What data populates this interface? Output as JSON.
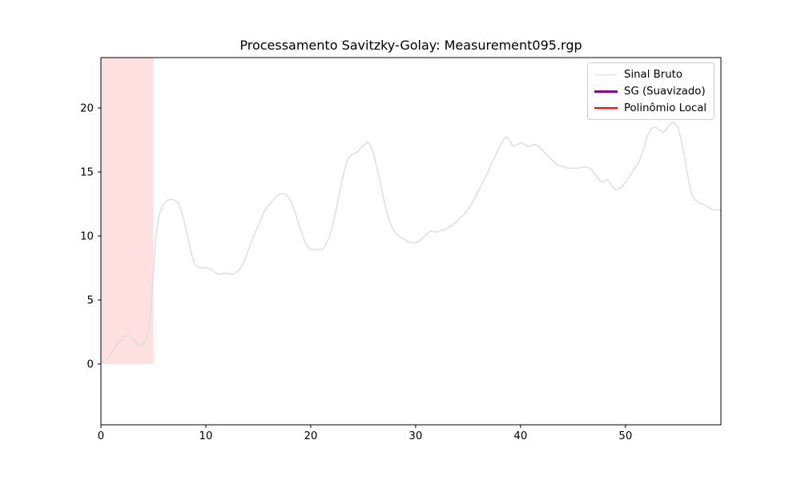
{
  "title": "Processamento Savitzky-Golay: Measurement095.rgp",
  "legend": {
    "position": "upper-right",
    "entries": [
      {
        "label": "Sinal Bruto",
        "color": "#dcdcdc",
        "linewidth": 1.5
      },
      {
        "label": "SG (Suavizado)",
        "color": "#800080",
        "linewidth": 3
      },
      {
        "label": "Polinômio Local",
        "color": "#ff0000",
        "linewidth": 2
      }
    ]
  },
  "chart_data": {
    "type": "line",
    "title": "Processamento Savitzky-Golay: Measurement095.rgp",
    "xlabel": "",
    "ylabel": "",
    "xlim": [
      0,
      59.1
    ],
    "ylim": [
      -4.75,
      23.94
    ],
    "xticks": [
      0,
      10,
      20,
      30,
      40,
      50
    ],
    "yticks": [
      0,
      5,
      10,
      15,
      20
    ],
    "grid": false,
    "background": "#ffffff",
    "spine_color": "#000000",
    "highlight_span": {
      "x0": 0,
      "x1": 5,
      "y0": 0,
      "y1": 23.94,
      "color": "rgba(255,0,0,0.12)"
    },
    "series": [
      {
        "name": "Sinal Bruto",
        "color": "#dcdcdc",
        "linewidth": 1.4,
        "x": [
          0.0,
          0.4,
          0.8,
          1.2,
          1.6,
          2.0,
          2.4,
          2.8,
          3.2,
          3.6,
          4.0,
          4.3,
          4.6,
          4.8,
          5.0,
          5.2,
          5.4,
          5.6,
          5.9,
          6.2,
          6.5,
          6.8,
          7.1,
          7.4,
          7.7,
          8.0,
          8.3,
          8.6,
          8.9,
          9.2,
          9.5,
          9.8,
          10.1,
          10.4,
          10.7,
          11.0,
          11.3,
          11.6,
          11.9,
          12.2,
          12.5,
          12.8,
          13.1,
          13.4,
          13.7,
          14.0,
          14.3,
          14.6,
          14.9,
          15.2,
          15.5,
          15.8,
          16.1,
          16.4,
          16.7,
          17.0,
          17.3,
          17.6,
          17.9,
          18.2,
          18.5,
          18.8,
          19.1,
          19.4,
          19.7,
          20.0,
          20.3,
          20.6,
          20.9,
          21.2,
          21.5,
          21.8,
          22.1,
          22.4,
          22.7,
          23.0,
          23.3,
          23.6,
          23.9,
          24.2,
          24.5,
          24.8,
          25.1,
          25.4,
          25.7,
          26.0,
          26.3,
          26.6,
          26.9,
          27.2,
          27.5,
          27.8,
          28.1,
          28.4,
          28.7,
          29.0,
          29.3,
          29.6,
          29.9,
          30.2,
          30.5,
          30.8,
          31.1,
          31.4,
          31.7,
          32.0,
          32.3,
          32.6,
          32.9,
          33.2,
          33.5,
          33.8,
          34.1,
          34.4,
          34.7,
          35.0,
          35.3,
          35.6,
          35.9,
          36.2,
          36.5,
          36.8,
          37.1,
          37.4,
          37.7,
          38.0,
          38.3,
          38.6,
          38.9,
          39.2,
          39.5,
          39.8,
          40.1,
          40.4,
          40.7,
          41.0,
          41.3,
          41.6,
          41.9,
          42.2,
          42.5,
          42.8,
          43.1,
          43.4,
          43.7,
          44.0,
          44.3,
          44.6,
          44.9,
          45.2,
          45.5,
          45.8,
          46.1,
          46.4,
          46.7,
          47.0,
          47.3,
          47.6,
          47.9,
          48.2,
          48.5,
          48.8,
          49.1,
          49.4,
          49.7,
          50.0,
          50.3,
          50.6,
          50.9,
          51.2,
          51.5,
          51.8,
          52.1,
          52.4,
          52.7,
          53.0,
          53.3,
          53.6,
          53.9,
          54.2,
          54.5,
          54.8,
          55.1,
          55.4,
          55.7,
          56.0,
          56.3,
          56.6,
          56.9,
          57.2,
          57.5,
          57.8,
          58.1,
          58.4,
          58.7,
          59.0,
          59.1
        ],
        "y": [
          0.1,
          0.3,
          0.65,
          1.1,
          1.6,
          1.95,
          2.2,
          2.15,
          1.85,
          1.45,
          1.5,
          1.9,
          2.9,
          4.8,
          7.3,
          9.4,
          10.9,
          11.8,
          12.4,
          12.7,
          12.85,
          12.85,
          12.75,
          12.55,
          11.9,
          10.9,
          9.8,
          8.7,
          7.85,
          7.6,
          7.55,
          7.5,
          7.5,
          7.45,
          7.25,
          7.1,
          7.0,
          7.05,
          7.1,
          7.05,
          7.0,
          7.1,
          7.3,
          7.6,
          8.1,
          8.8,
          9.5,
          10.1,
          10.6,
          11.2,
          11.8,
          12.2,
          12.5,
          12.8,
          13.05,
          13.25,
          13.3,
          13.25,
          13.0,
          12.5,
          11.9,
          11.1,
          10.4,
          9.6,
          9.15,
          8.95,
          8.9,
          9.0,
          8.9,
          9.0,
          9.4,
          10.0,
          10.9,
          12.0,
          13.2,
          14.4,
          15.4,
          16.1,
          16.4,
          16.45,
          16.6,
          16.9,
          17.1,
          17.35,
          17.1,
          16.4,
          15.4,
          14.3,
          13.1,
          12.0,
          11.2,
          10.6,
          10.2,
          10.0,
          9.85,
          9.7,
          9.55,
          9.5,
          9.45,
          9.55,
          9.7,
          9.95,
          10.15,
          10.4,
          10.35,
          10.3,
          10.4,
          10.45,
          10.55,
          10.7,
          10.85,
          11.05,
          11.3,
          11.5,
          11.75,
          12.1,
          12.5,
          12.9,
          13.4,
          13.9,
          14.4,
          14.85,
          15.4,
          15.9,
          16.45,
          17.0,
          17.4,
          17.75,
          17.55,
          17.1,
          17.05,
          17.2,
          17.3,
          17.15,
          17.0,
          17.05,
          17.15,
          17.1,
          16.9,
          16.6,
          16.3,
          16.1,
          15.85,
          15.6,
          15.5,
          15.45,
          15.35,
          15.3,
          15.3,
          15.3,
          15.3,
          15.35,
          15.4,
          15.35,
          15.25,
          14.95,
          14.6,
          14.3,
          14.2,
          14.4,
          14.25,
          13.8,
          13.6,
          13.7,
          13.9,
          14.2,
          14.55,
          14.95,
          15.3,
          15.6,
          16.3,
          17.0,
          17.8,
          18.3,
          18.5,
          18.45,
          18.25,
          18.1,
          18.3,
          18.7,
          18.9,
          18.75,
          18.3,
          17.2,
          15.9,
          14.4,
          13.3,
          12.85,
          12.65,
          12.55,
          12.45,
          12.3,
          12.15,
          12.05,
          12.0,
          12.05,
          12.0
        ]
      },
      {
        "name": "SG (Suavizado)",
        "color": "#800080",
        "linewidth": 2.8,
        "x": [],
        "y": []
      },
      {
        "name": "Polinômio Local",
        "color": "#ff0000",
        "linewidth": 1.8,
        "x": [],
        "y": []
      }
    ]
  }
}
